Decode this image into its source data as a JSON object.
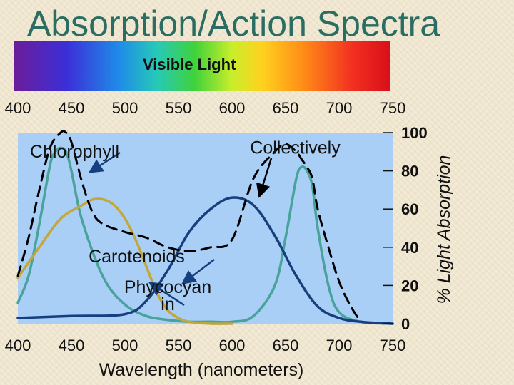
{
  "header": {
    "title": "Absorption/Action Spectra",
    "spectrum_label": "Visible Light"
  },
  "chart_data": {
    "type": "line",
    "xlabel": "Wavelength (nanometers)",
    "ylabel": "% Light Absorption",
    "xlim": [
      400,
      750
    ],
    "ylim": [
      0,
      100
    ],
    "x_ticks": [
      "400",
      "450",
      "500",
      "550",
      "600",
      "650",
      "700",
      "750"
    ],
    "y_ticks": [
      "0",
      "20",
      "40",
      "60",
      "80",
      "100"
    ],
    "colors": {
      "plot_bg": "#a9cff7",
      "chlorophyll": "#4aa39b",
      "carotenoids": "#c2a83c",
      "phycocyanin": "#173f7e",
      "collectively": "#000000"
    },
    "series": [
      {
        "name": "Chlorophyll",
        "color": "#4aa39b",
        "x": [
          400,
          410,
          420,
          430,
          435,
          440,
          445,
          450,
          460,
          480,
          500,
          520,
          540,
          560,
          580,
          600,
          620,
          640,
          650,
          660,
          665,
          670,
          675,
          680,
          690,
          700,
          720,
          750
        ],
        "y": [
          11,
          25,
          52,
          83,
          90,
          92,
          90,
          80,
          54,
          24,
          10,
          4,
          2,
          1,
          1,
          1,
          4,
          20,
          45,
          76,
          82,
          80,
          72,
          50,
          20,
          6,
          1,
          0
        ]
      },
      {
        "name": "Carotenoids",
        "color": "#c2a83c",
        "x": [
          400,
          420,
          440,
          460,
          470,
          480,
          490,
          500,
          510,
          520,
          530,
          540,
          550,
          560,
          580,
          600
        ],
        "y": [
          24,
          40,
          55,
          62,
          65,
          65,
          62,
          55,
          44,
          30,
          16,
          7,
          3,
          1,
          0,
          0
        ]
      },
      {
        "name": "Phycocyanin",
        "color": "#173f7e",
        "x": [
          400,
          450,
          500,
          520,
          540,
          560,
          580,
          600,
          620,
          640,
          660,
          680,
          700,
          720,
          750
        ],
        "y": [
          3,
          4,
          5,
          12,
          28,
          48,
          60,
          66,
          62,
          46,
          25,
          9,
          3,
          1,
          0
        ]
      },
      {
        "name": "Collectively",
        "color": "#000000",
        "x": [
          400,
          410,
          420,
          430,
          440,
          445,
          450,
          460,
          470,
          480,
          500,
          520,
          540,
          560,
          580,
          600,
          620,
          640,
          650,
          660,
          665,
          670,
          675,
          680,
          690,
          700,
          710,
          720
        ],
        "y": [
          25,
          45,
          70,
          92,
          100,
          100,
          95,
          74,
          58,
          52,
          48,
          45,
          40,
          38,
          40,
          44,
          76,
          90,
          94,
          90,
          86,
          82,
          76,
          60,
          40,
          22,
          10,
          1
        ]
      }
    ],
    "annotations": [
      {
        "text": "Chlorophyll",
        "x": 453,
        "y": 87
      },
      {
        "text": "Collectively",
        "x": 659,
        "y": 89
      },
      {
        "text": "Carotenoids",
        "x": 511,
        "y": 32
      },
      {
        "text": "Phyco­cyan",
        "x": 540,
        "y": 16
      },
      {
        "text": "in",
        "x": 540,
        "y": 7
      }
    ]
  }
}
